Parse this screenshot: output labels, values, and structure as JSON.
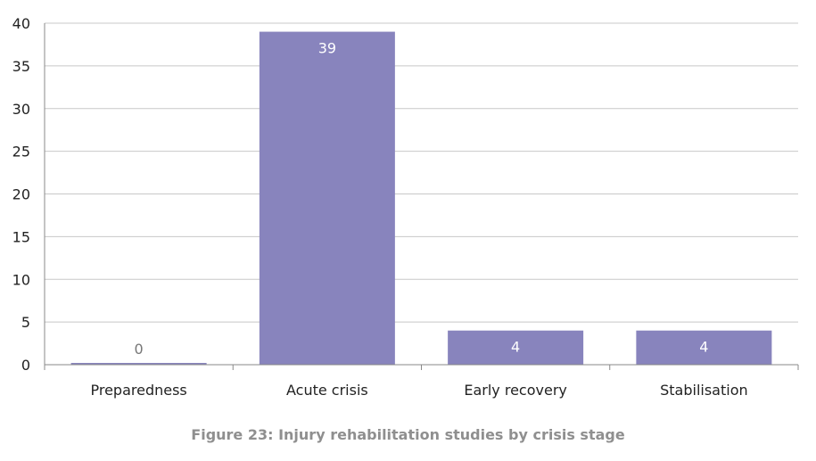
{
  "chart_data": {
    "type": "bar",
    "categories": [
      "Preparedness",
      "Acute crisis",
      "Early recovery",
      "Stabilisation"
    ],
    "values": [
      0,
      39,
      4,
      4
    ],
    "data_labels": [
      "0",
      "39",
      "4",
      "4"
    ],
    "ylim": [
      0,
      40
    ],
    "yticks": [
      0,
      5,
      10,
      15,
      20,
      25,
      30,
      35,
      40
    ],
    "ytick_labels": [
      "0",
      "5",
      "10",
      "15",
      "20",
      "25",
      "30",
      "35",
      "40"
    ],
    "title": "",
    "xlabel": "",
    "ylabel": "",
    "grid": true,
    "legend": "none",
    "bar_color": "#8884bd",
    "grid_color": "#c8c8c8",
    "axis_color": "#888888"
  },
  "caption": "Figure 23: Injury rehabilitation studies by crisis stage"
}
